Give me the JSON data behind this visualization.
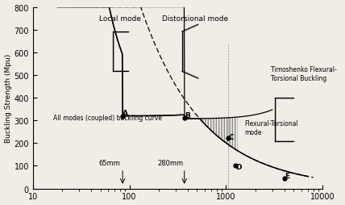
{
  "ylabel": "Buckling Strength (Mpu)",
  "xlim": [
    10,
    10000
  ],
  "ylim": [
    0,
    800
  ],
  "yticks": [
    0,
    100,
    200,
    300,
    400,
    500,
    600,
    700,
    800
  ],
  "xticks": [
    10,
    100,
    1000,
    10000
  ],
  "xticklabels": [
    "10",
    "100",
    "1000",
    "10000"
  ],
  "bg_color": "#f0ede6",
  "point_A": [
    85,
    320
  ],
  "point_B": [
    370,
    310
  ],
  "point_C": [
    1050,
    222
  ],
  "point_D": [
    1250,
    100
  ],
  "point_E": [
    4000,
    45
  ]
}
